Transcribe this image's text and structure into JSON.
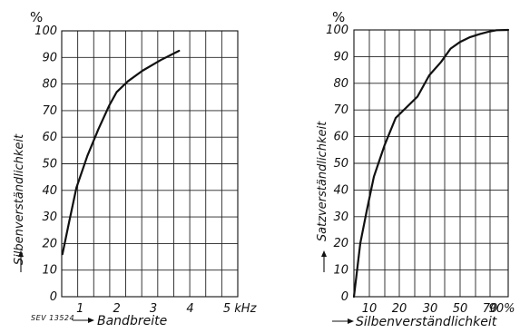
{
  "figure_ref": "SEV 13524",
  "chart_data": [
    {
      "type": "line",
      "xlabel": "Bandbreite",
      "ylabel": "Silbenverständlichkeit",
      "y_unit": "%",
      "x_tick_labels": [
        "1",
        "2",
        "3",
        "4",
        "5 kHz"
      ],
      "y_tick_labels": [
        "0",
        "10",
        "20",
        "30",
        "40",
        "50",
        "60",
        "70",
        "80",
        "90",
        "100"
      ],
      "xlim": [
        0.5,
        5.3
      ],
      "ylim": [
        0,
        100
      ],
      "grid": true,
      "series": [
        {
          "x": [
            0.52,
            0.7,
            0.9,
            1.2,
            1.5,
            1.8,
            2.0,
            2.3,
            2.7,
            3.2,
            3.7
          ],
          "y": [
            16,
            28,
            41,
            53,
            63,
            72,
            77,
            81,
            85,
            89,
            92.5
          ]
        }
      ]
    },
    {
      "type": "line",
      "xlabel": "Silbenverständlichkeit",
      "ylabel": "Satzverständlichkeit",
      "y_unit": "%",
      "x_tick_labels": [
        "10",
        "20",
        "30",
        "50",
        "70",
        "90%"
      ],
      "y_tick_labels": [
        "0",
        "10",
        "20",
        "30",
        "40",
        "50",
        "60",
        "70",
        "80",
        "90",
        "100"
      ],
      "xlim": [
        0,
        100
      ],
      "ylim": [
        0,
        100
      ],
      "grid": true,
      "series": [
        {
          "x": [
            0,
            5,
            8,
            11,
            14,
            17,
            20,
            25,
            30,
            40,
            50,
            60,
            70,
            80,
            90,
            100
          ],
          "y": [
            0,
            20,
            32,
            45,
            57,
            67,
            75,
            83,
            88,
            93,
            95.5,
            97.3,
            98.5,
            99.3,
            99.9,
            100
          ]
        }
      ]
    }
  ]
}
